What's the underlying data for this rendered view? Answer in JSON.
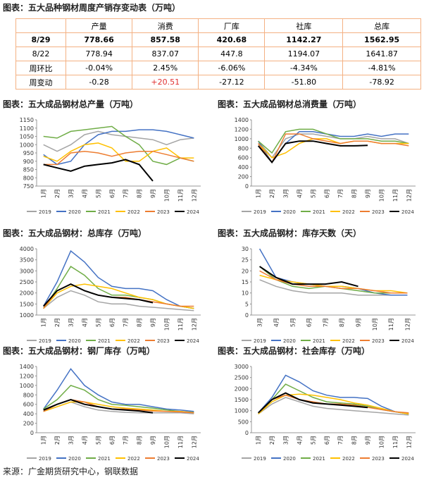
{
  "table": {
    "title": "图表：五大品种钢材周度产销存变动表（万吨）",
    "header": [
      "",
      "产量",
      "消费",
      "厂库",
      "社库",
      "总库"
    ],
    "rows": [
      [
        "8/29",
        "778.66",
        "857.58",
        "420.68",
        "1142.27",
        "1562.95"
      ],
      [
        "8/22",
        "778.94",
        "837.07",
        "447.8",
        "1194.07",
        "1641.87"
      ],
      [
        "周环比",
        "-0.04%",
        "2.45%",
        "-6.06%",
        "-4.34%",
        "-4.81%"
      ],
      [
        "周变动",
        "-0.28",
        "+20.51",
        "-27.12",
        "-51.80",
        "-78.92"
      ]
    ]
  },
  "chart_data": [
    {
      "type": "line",
      "title": "图表：五大成品钢材总产量（万吨）",
      "categories": [
        "1月",
        "2月",
        "3月",
        "4月",
        "5月",
        "6月",
        "7月",
        "8月",
        "9月",
        "10月",
        "11月",
        "12月"
      ],
      "ylim": [
        750,
        1150
      ],
      "yticks": [
        750,
        800,
        850,
        900,
        950,
        1000,
        1050,
        1100,
        1150
      ],
      "series": [
        {
          "name": "2019",
          "color": "#a5a5a5",
          "values": [
            1000,
            960,
            1000,
            1060,
            1080,
            1060,
            1050,
            1040,
            1030,
            1000,
            1030,
            1040
          ]
        },
        {
          "name": "2020",
          "color": "#4472c4",
          "values": [
            940,
            880,
            900,
            1000,
            1060,
            1080,
            1080,
            1090,
            1090,
            1080,
            1060,
            1040
          ]
        },
        {
          "name": "2021",
          "color": "#70ad47",
          "values": [
            1050,
            1040,
            1080,
            1090,
            1100,
            1110,
            1050,
            1000,
            900,
            880,
            920,
            900
          ]
        },
        {
          "name": "2022",
          "color": "#ffc000",
          "values": [
            930,
            900,
            960,
            1000,
            1010,
            980,
            900,
            900,
            960,
            980,
            920,
            920
          ]
        },
        {
          "name": "2023",
          "color": "#ed7d31",
          "values": [
            880,
            880,
            950,
            960,
            950,
            930,
            950,
            960,
            960,
            940,
            920,
            900
          ]
        },
        {
          "name": "2024",
          "color": "#000000",
          "values": [
            880,
            860,
            840,
            870,
            880,
            890,
            910,
            880,
            780,
            null,
            null,
            null
          ]
        }
      ]
    },
    {
      "type": "line",
      "title": "图表：五大成品钢材总消费量（万吨）",
      "categories": [
        "1月",
        "2月",
        "3月",
        "4月",
        "5月",
        "6月",
        "7月",
        "8月",
        "9月",
        "10月",
        "11月",
        "12月"
      ],
      "ylim": [
        0,
        1400
      ],
      "yticks": [
        0,
        200,
        400,
        600,
        800,
        1000,
        1200,
        1400
      ],
      "series": [
        {
          "name": "2019",
          "color": "#a5a5a5",
          "values": [
            950,
            600,
            1000,
            1100,
            1100,
            1050,
            1000,
            1000,
            1050,
            1000,
            1000,
            900
          ]
        },
        {
          "name": "2020",
          "color": "#4472c4",
          "values": [
            950,
            500,
            900,
            1150,
            1150,
            1100,
            1050,
            1050,
            1100,
            1050,
            1100,
            1100
          ]
        },
        {
          "name": "2021",
          "color": "#70ad47",
          "values": [
            950,
            700,
            1150,
            1200,
            1200,
            1100,
            1000,
            1000,
            1000,
            950,
            950,
            900
          ]
        },
        {
          "name": "2022",
          "color": "#ffc000",
          "values": [
            900,
            600,
            700,
            900,
            1000,
            1000,
            900,
            950,
            950,
            900,
            900,
            900
          ]
        },
        {
          "name": "2023",
          "color": "#ed7d31",
          "values": [
            900,
            500,
            1100,
            1100,
            1000,
            950,
            900,
            950,
            950,
            900,
            900,
            850
          ]
        },
        {
          "name": "2024",
          "color": "#000000",
          "values": [
            850,
            500,
            900,
            950,
            950,
            900,
            850,
            850,
            860,
            null,
            null,
            null
          ]
        }
      ]
    },
    {
      "type": "line",
      "title": "图表：五大成品钢材：总库存（万吨）",
      "categories": [
        "1月",
        "2月",
        "3月",
        "4月",
        "5月",
        "6月",
        "7月",
        "8月",
        "9月",
        "10月",
        "11月",
        "12月"
      ],
      "ylim": [
        1000,
        4000
      ],
      "yticks": [
        1000,
        1500,
        2000,
        2500,
        3000,
        3500,
        4000
      ],
      "series": [
        {
          "name": "2019",
          "color": "#a5a5a5",
          "values": [
            1300,
            1800,
            2100,
            1900,
            1600,
            1500,
            1500,
            1400,
            1350,
            1300,
            1250,
            1200
          ]
        },
        {
          "name": "2020",
          "color": "#4472c4",
          "values": [
            1400,
            2500,
            3900,
            3400,
            2700,
            2300,
            2200,
            2200,
            2100,
            1700,
            1400,
            1300
          ]
        },
        {
          "name": "2021",
          "color": "#70ad47",
          "values": [
            1300,
            2200,
            3200,
            2800,
            2200,
            1900,
            1900,
            1800,
            1700,
            1500,
            1400,
            1300
          ]
        },
        {
          "name": "2022",
          "color": "#ffc000",
          "values": [
            1300,
            2000,
            2300,
            2400,
            2300,
            2200,
            2000,
            1800,
            1700,
            1500,
            1400,
            1300
          ]
        },
        {
          "name": "2023",
          "color": "#ed7d31",
          "values": [
            1300,
            2100,
            2400,
            2100,
            1900,
            1800,
            1800,
            1700,
            1600,
            1500,
            1400,
            1400
          ]
        },
        {
          "name": "2024",
          "color": "#000000",
          "values": [
            1400,
            2100,
            2400,
            2100,
            1900,
            1800,
            1750,
            1700,
            1560,
            null,
            null,
            null
          ]
        }
      ]
    },
    {
      "type": "line",
      "title": "图表：五大成品钢材：库存天数（天）",
      "categories": [
        "3月",
        "4月",
        "5月",
        "6月",
        "7月",
        "8月",
        "9月",
        "10月",
        "11月",
        "12月"
      ],
      "ylim": [
        0,
        30
      ],
      "yticks": [
        0,
        5,
        10,
        15,
        20,
        25,
        30
      ],
      "series": [
        {
          "name": "2019",
          "color": "#a5a5a5",
          "values": [
            16,
            13,
            11,
            10,
            10,
            10,
            9,
            9,
            9,
            9
          ]
        },
        {
          "name": "2020",
          "color": "#4472c4",
          "values": [
            30,
            17,
            15,
            14,
            13,
            13,
            12,
            10,
            9,
            9
          ]
        },
        {
          "name": "2021",
          "color": "#70ad47",
          "values": [
            22,
            16,
            13,
            12,
            13,
            12,
            11,
            10,
            10,
            10
          ]
        },
        {
          "name": "2022",
          "color": "#ffc000",
          "values": [
            18,
            16,
            15,
            14,
            13,
            13,
            12,
            11,
            11,
            10
          ]
        },
        {
          "name": "2023",
          "color": "#ed7d31",
          "values": [
            20,
            16,
            14,
            13,
            13,
            12,
            12,
            11,
            10,
            10
          ]
        },
        {
          "name": "2024",
          "color": "#000000",
          "values": [
            22,
            17,
            14,
            14,
            14,
            15,
            13,
            null,
            null,
            null
          ]
        }
      ]
    },
    {
      "type": "line",
      "title": "图表：五大成品钢材：钢厂库存（万吨）",
      "categories": [
        "1月",
        "2月",
        "3月",
        "4月",
        "5月",
        "6月",
        "7月",
        "8月",
        "9月",
        "10月",
        "11月",
        "12月"
      ],
      "ylim": [
        0,
        1400
      ],
      "yticks": [
        0,
        200,
        400,
        600,
        800,
        1000,
        1200,
        1400
      ],
      "series": [
        {
          "name": "2019",
          "color": "#a5a5a5",
          "values": [
            450,
            550,
            650,
            550,
            480,
            450,
            430,
            420,
            420,
            420,
            420,
            400
          ]
        },
        {
          "name": "2020",
          "color": "#4472c4",
          "values": [
            500,
            900,
            1350,
            1000,
            800,
            650,
            600,
            600,
            550,
            500,
            480,
            450
          ]
        },
        {
          "name": "2021",
          "color": "#70ad47",
          "values": [
            500,
            700,
            1000,
            900,
            700,
            600,
            580,
            550,
            520,
            480,
            450,
            430
          ]
        },
        {
          "name": "2022",
          "color": "#ffc000",
          "values": [
            450,
            550,
            650,
            650,
            600,
            550,
            520,
            500,
            480,
            450,
            450,
            420
          ]
        },
        {
          "name": "2023",
          "color": "#ed7d31",
          "values": [
            450,
            600,
            700,
            650,
            550,
            500,
            500,
            480,
            460,
            450,
            440,
            420
          ]
        },
        {
          "name": "2024",
          "color": "#000000",
          "values": [
            480,
            600,
            700,
            600,
            550,
            500,
            480,
            460,
            420,
            null,
            null,
            null
          ]
        }
      ]
    },
    {
      "type": "line",
      "title": "图表：五大成品钢材：社会库存（万吨）",
      "categories": [
        "1月",
        "2月",
        "3月",
        "4月",
        "5月",
        "6月",
        "7月",
        "8月",
        "9月",
        "10月",
        "11月",
        "12月"
      ],
      "ylim": [
        0,
        3000
      ],
      "yticks": [
        0,
        500,
        1000,
        1500,
        2000,
        2500,
        3000
      ],
      "series": [
        {
          "name": "2019",
          "color": "#a5a5a5",
          "values": [
            850,
            1300,
            1600,
            1400,
            1200,
            1100,
            1050,
            1000,
            950,
            900,
            850,
            800
          ]
        },
        {
          "name": "2020",
          "color": "#4472c4",
          "values": [
            900,
            1600,
            2600,
            2300,
            1900,
            1700,
            1600,
            1600,
            1550,
            1200,
            950,
            850
          ]
        },
        {
          "name": "2021",
          "color": "#70ad47",
          "values": [
            850,
            1500,
            2200,
            1900,
            1600,
            1400,
            1350,
            1300,
            1200,
            1050,
            950,
            850
          ]
        },
        {
          "name": "2022",
          "color": "#ffc000",
          "values": [
            850,
            1400,
            1700,
            1750,
            1700,
            1600,
            1500,
            1350,
            1250,
            1100,
            950,
            850
          ]
        },
        {
          "name": "2023",
          "color": "#ed7d31",
          "values": [
            900,
            1500,
            1700,
            1500,
            1400,
            1300,
            1300,
            1250,
            1150,
            1050,
            950,
            900
          ]
        },
        {
          "name": "2024",
          "color": "#000000",
          "values": [
            900,
            1500,
            1800,
            1500,
            1350,
            1300,
            1250,
            1200,
            1140,
            null,
            null,
            null
          ]
        }
      ]
    }
  ],
  "source": "来源：广金期货研究中心，钢联数据"
}
